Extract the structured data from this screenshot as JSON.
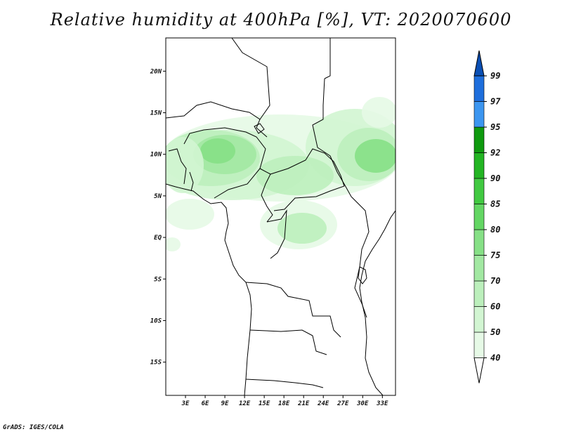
{
  "title": "Relative humidity at 400hPa [%], VT: 2020070600",
  "credit": "GrADS: IGES/COLA",
  "map": {
    "projection": "lat-lon",
    "lon_range": [
      0,
      35
    ],
    "lat_range": [
      -19,
      24
    ],
    "lat_ticks": [
      {
        "value": 20,
        "label": "20N"
      },
      {
        "value": 15,
        "label": "15N"
      },
      {
        "value": 10,
        "label": "10N"
      },
      {
        "value": 5,
        "label": "5N"
      },
      {
        "value": 0,
        "label": "EQ"
      },
      {
        "value": -5,
        "label": "5S"
      },
      {
        "value": -10,
        "label": "10S"
      },
      {
        "value": -15,
        "label": "15S"
      }
    ],
    "lon_ticks": [
      {
        "value": 3,
        "label": "3E"
      },
      {
        "value": 6,
        "label": "6E"
      },
      {
        "value": 9,
        "label": "9E"
      },
      {
        "value": 12,
        "label": "12E"
      },
      {
        "value": 15,
        "label": "15E"
      },
      {
        "value": 18,
        "label": "18E"
      },
      {
        "value": 21,
        "label": "21E"
      },
      {
        "value": 24,
        "label": "24E"
      },
      {
        "value": 27,
        "label": "27E"
      },
      {
        "value": 30,
        "label": "30E"
      },
      {
        "value": 33,
        "label": "33E"
      }
    ]
  },
  "colorbar": {
    "levels": [
      "40",
      "50",
      "60",
      "70",
      "75",
      "80",
      "85",
      "90",
      "92",
      "95",
      "97",
      "99"
    ],
    "colors": [
      "#ffffff",
      "#e6f9e6",
      "#d2f5d2",
      "#bcefbc",
      "#a2e8a2",
      "#86e086",
      "#63d663",
      "#41c941",
      "#23b523",
      "#0f9a0f",
      "#3c96f0",
      "#1e6edc",
      "#0a4fb4"
    ]
  }
}
